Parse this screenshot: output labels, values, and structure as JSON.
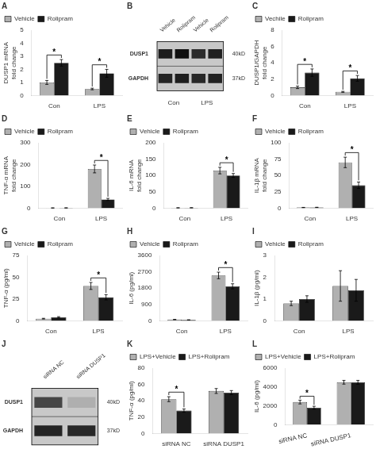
{
  "chart_data": [
    {
      "type": "bar",
      "title": "A",
      "categories": [
        "Con",
        "LPS"
      ],
      "series": [
        {
          "name": "Vehicle",
          "color": "#b0b0b0",
          "values": [
            1.0,
            0.5
          ],
          "errors": [
            0.15,
            0.06
          ]
        },
        {
          "name": "Rolipram",
          "color": "#1a1a1a",
          "values": [
            2.5,
            1.7
          ],
          "errors": [
            0.25,
            0.3
          ]
        }
      ],
      "ylabel": "DUSP1 mRNA\nfold change",
      "ylim": [
        0,
        5
      ],
      "yticks": [
        0,
        1,
        2,
        3,
        4,
        5
      ],
      "significance": [
        {
          "category": "Con",
          "label": "*"
        },
        {
          "category": "LPS",
          "label": "*"
        }
      ],
      "legend": "upper left",
      "grid": false
    },
    {
      "type": "blot",
      "title": "B",
      "categories": [
        "Vehicle",
        "Rolipram",
        "Vehicle",
        "Rolipram"
      ],
      "rows": [
        "DUSP1",
        "GAPDH"
      ],
      "kd_labels": [
        "40kD",
        "37kD"
      ],
      "groups": [
        "Con",
        "LPS"
      ],
      "bands": [
        [
          0.85,
          0.92,
          0.78,
          0.84
        ],
        [
          0.82,
          0.85,
          0.8,
          0.83
        ]
      ]
    },
    {
      "type": "bar",
      "title": "C",
      "categories": [
        "Con",
        "LPS"
      ],
      "series": [
        {
          "name": "Vechile",
          "color": "#b0b0b0",
          "values": [
            1.0,
            0.45
          ],
          "errors": [
            0.15,
            0.06
          ]
        },
        {
          "name": "Rolipram",
          "color": "#1a1a1a",
          "values": [
            2.8,
            2.1
          ],
          "errors": [
            0.45,
            0.35
          ]
        }
      ],
      "ylabel": "DUSP1/GAPDH\nfold change",
      "ylim": [
        0,
        8
      ],
      "yticks": [
        0,
        2,
        4,
        6,
        8
      ],
      "significance": [
        {
          "category": "Con",
          "label": "*"
        },
        {
          "category": "LPS",
          "label": "*"
        }
      ],
      "legend": "upper left",
      "grid": false
    },
    {
      "type": "bar",
      "title": "D",
      "categories": [
        "Con",
        "LPS"
      ],
      "series": [
        {
          "name": "Vehicle",
          "color": "#b0b0b0",
          "values": [
            1.0,
            180.0
          ],
          "errors": [
            0.2,
            18.0
          ]
        },
        {
          "name": "Rolipram",
          "color": "#1a1a1a",
          "values": [
            1.2,
            40.0
          ],
          "errors": [
            0.2,
            5.0
          ]
        }
      ],
      "ylabel": "TNF-α mRNA\nfold change",
      "ylim": [
        0,
        300
      ],
      "yticks": [
        0,
        100,
        200,
        300
      ],
      "significance": [
        {
          "category": "LPS",
          "label": "*"
        }
      ],
      "legend": "upper left",
      "grid": false
    },
    {
      "type": "bar",
      "title": "E",
      "categories": [
        "Con",
        "LPS"
      ],
      "series": [
        {
          "name": "Vehicle",
          "color": "#b0b0b0",
          "values": [
            1.0,
            115.0
          ],
          "errors": [
            0.2,
            10.0
          ]
        },
        {
          "name": "Rolipram",
          "color": "#1a1a1a",
          "values": [
            1.2,
            100.0
          ],
          "errors": [
            0.2,
            6.0
          ]
        }
      ],
      "ylabel": "IL-6 mRNA\nfold change",
      "ylim": [
        0,
        200
      ],
      "yticks": [
        0,
        50,
        100,
        150,
        200
      ],
      "significance": [
        {
          "category": "LPS",
          "label": "*"
        }
      ],
      "legend": "upper left",
      "grid": false
    },
    {
      "type": "bar",
      "title": "F",
      "categories": [
        "Con",
        "LPS"
      ],
      "series": [
        {
          "name": "Vehicle",
          "color": "#b0b0b0",
          "values": [
            1.0,
            70.0
          ],
          "errors": [
            0.2,
            8.0
          ]
        },
        {
          "name": "Rolipram",
          "color": "#1a1a1a",
          "values": [
            1.2,
            35.0
          ],
          "errors": [
            0.2,
            5.0
          ]
        }
      ],
      "ylabel": "IL-1β mRNA\nfold change",
      "ylim": [
        0,
        100
      ],
      "yticks": [
        0,
        25,
        50,
        75,
        100
      ],
      "significance": [
        {
          "category": "LPS",
          "label": "*"
        }
      ],
      "legend": "upper left",
      "grid": false
    },
    {
      "type": "bar",
      "title": "G",
      "categories": [
        "Con",
        "LPS"
      ],
      "series": [
        {
          "name": "Vehicle",
          "color": "#b0b0b0",
          "values": [
            2.5,
            40.0
          ],
          "errors": [
            0.4,
            4.0
          ]
        },
        {
          "name": "Rolipram",
          "color": "#1a1a1a",
          "values": [
            4.0,
            27.0
          ],
          "errors": [
            0.8,
            3.0
          ]
        }
      ],
      "ylabel": "TNF-α (pg/ml)",
      "ylim": [
        0,
        75
      ],
      "yticks": [
        0,
        25,
        50,
        75
      ],
      "significance": [
        {
          "category": "LPS",
          "label": "*"
        }
      ],
      "legend": "upper left",
      "grid": false
    },
    {
      "type": "bar",
      "title": "H",
      "categories": [
        "Con",
        "LPS"
      ],
      "series": [
        {
          "name": "Vehicle",
          "color": "#b0b0b0",
          "values": [
            70.0,
            2500.0
          ],
          "errors": [
            10.0,
            180.0
          ]
        },
        {
          "name": "Rolipram",
          "color": "#1a1a1a",
          "values": [
            50.0,
            1900.0
          ],
          "errors": [
            8.0,
            140.0
          ]
        }
      ],
      "ylabel": "IL-6 (pg/ml)",
      "ylim": [
        0,
        3600
      ],
      "yticks": [
        0,
        900,
        1800,
        2700,
        3600
      ],
      "significance": [
        {
          "category": "LPS",
          "label": "*"
        }
      ],
      "legend": "upper left",
      "grid": false
    },
    {
      "type": "bar",
      "title": "I",
      "categories": [
        "Con",
        "LPS"
      ],
      "series": [
        {
          "name": "Vehicle",
          "color": "#b0b0b0",
          "values": [
            0.8,
            1.6
          ],
          "errors": [
            0.1,
            0.7
          ]
        },
        {
          "name": "Rolipram",
          "color": "#1a1a1a",
          "values": [
            1.0,
            1.4
          ],
          "errors": [
            0.15,
            0.5
          ]
        }
      ],
      "ylabel": "IL-1β (pg/ml)",
      "ylim": [
        0,
        3
      ],
      "yticks": [
        0,
        1,
        2,
        3
      ],
      "legend": "upper left",
      "grid": false
    },
    {
      "type": "blot",
      "title": "J",
      "categories": [
        "siRNA NC",
        "siRNA DUSP1"
      ],
      "rows": [
        "DUSP1",
        "GAPDH"
      ],
      "kd_labels": [
        "40kD",
        "37kD"
      ],
      "bands": [
        [
          0.65,
          0.12
        ],
        [
          0.82,
          0.8
        ]
      ]
    },
    {
      "type": "bar",
      "title": "K",
      "categories": [
        "siRNA NC",
        "siRNA DUSP1"
      ],
      "series": [
        {
          "name": "LPS+Vehicle",
          "color": "#b0b0b0",
          "values": [
            42.0,
            52.0
          ],
          "errors": [
            3.0,
            3.0
          ]
        },
        {
          "name": "LPS+Rolipram",
          "color": "#1a1a1a",
          "values": [
            28.0,
            50.0
          ],
          "errors": [
            2.0,
            2.5
          ]
        }
      ],
      "ylabel": "TNF-α (pg/ml)",
      "ylim": [
        0,
        80
      ],
      "yticks": [
        0,
        20,
        40,
        60,
        80
      ],
      "significance": [
        {
          "category": "siRNA NC",
          "label": "*"
        }
      ],
      "legend": "upper left",
      "grid": false
    },
    {
      "type": "bar",
      "title": "L",
      "categories": [
        "siRNA NC",
        "siRNA DUSP1"
      ],
      "series": [
        {
          "name": "LPS+Vehicle",
          "color": "#b0b0b0",
          "values": [
            2400.0,
            4500.0
          ],
          "errors": [
            200.0,
            200.0
          ]
        },
        {
          "name": "LPS+Rolipram",
          "color": "#1a1a1a",
          "values": [
            1800.0,
            4500.0
          ],
          "errors": [
            150.0,
            200.0
          ]
        }
      ],
      "ylabel": "IL-6 (pg/ml)",
      "ylim": [
        0,
        6000
      ],
      "yticks": [
        0,
        2000,
        4000,
        6000
      ],
      "significance": [
        {
          "category": "siRNA NC",
          "label": "*"
        }
      ],
      "legend": "upper left",
      "grid": false
    }
  ]
}
